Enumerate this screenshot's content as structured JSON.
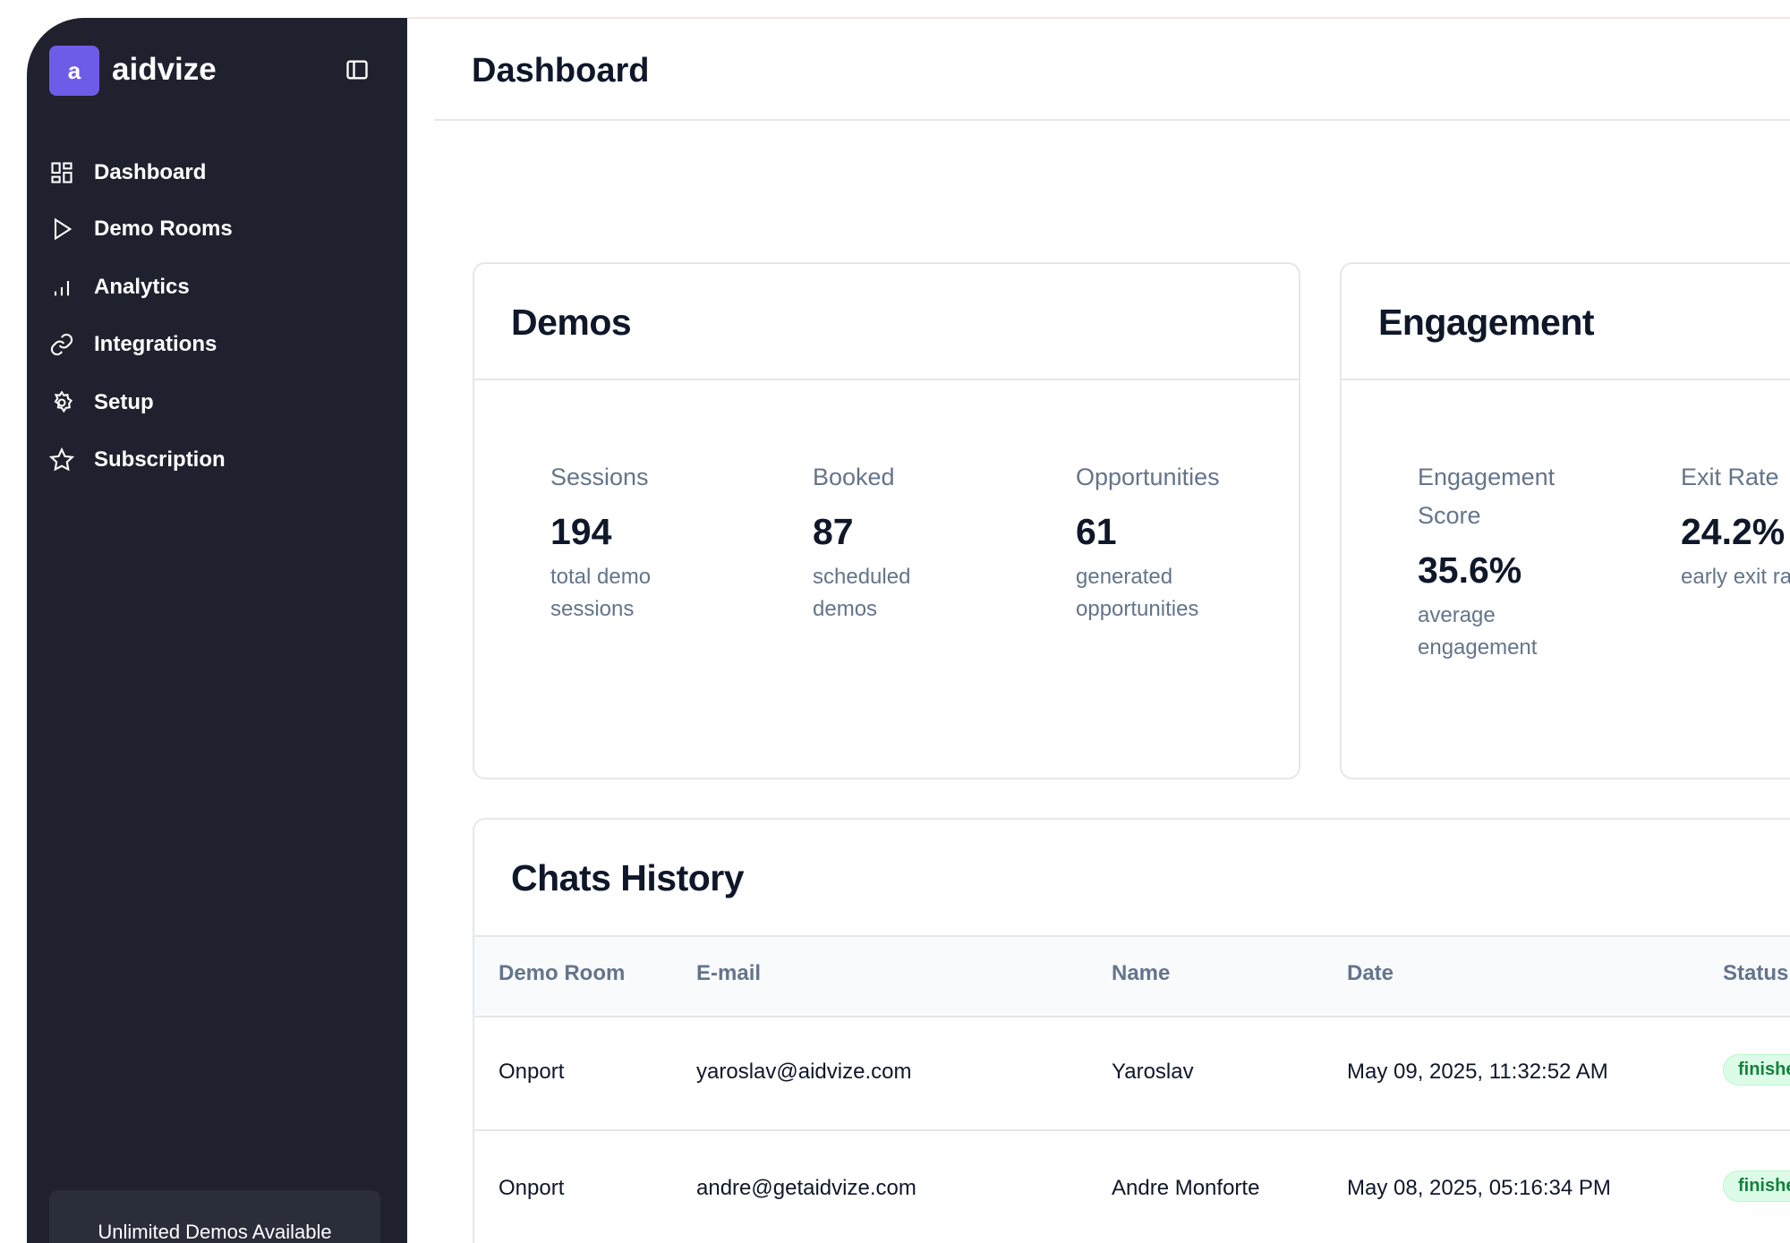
{
  "sidebar": {
    "logo": "a",
    "brand": "aidvize",
    "nav": [
      "Dashboard",
      "Demo Rooms",
      "Analytics",
      "Integrations",
      "Setup",
      "Subscription"
    ],
    "footer": "Unlimited Demos Available"
  },
  "header": {
    "title": "Dashboard"
  },
  "cards": [
    {
      "title": "Demos",
      "stats": [
        {
          "label": "Sessions",
          "value": "194",
          "description": "total demo sessions"
        },
        {
          "label": "Booked",
          "value": "87",
          "description": "scheduled demos"
        },
        {
          "label": "Opportunities",
          "value": "61",
          "description": "generated opportunities"
        }
      ]
    },
    {
      "title": "Engagement",
      "stats": [
        {
          "label": "Engagement Score",
          "value": "35.6%",
          "description": "average engagement"
        },
        {
          "label": "Exit Rate",
          "value": "24.2%",
          "description": "early exit rate"
        }
      ]
    }
  ],
  "chats": {
    "title": "Chats History",
    "columns": [
      "Demo Room",
      "E-mail",
      "Name",
      "Date",
      "Status"
    ],
    "rows": [
      [
        "Onport",
        "yaroslav@aidvize.com",
        "Yaroslav",
        "May 09, 2025, 11:32:52 AM",
        "finished"
      ],
      [
        "Onport",
        "andre@getaidvize.com",
        "Andre Monforte",
        "May 08, 2025, 05:16:34 PM",
        "finished"
      ]
    ]
  }
}
